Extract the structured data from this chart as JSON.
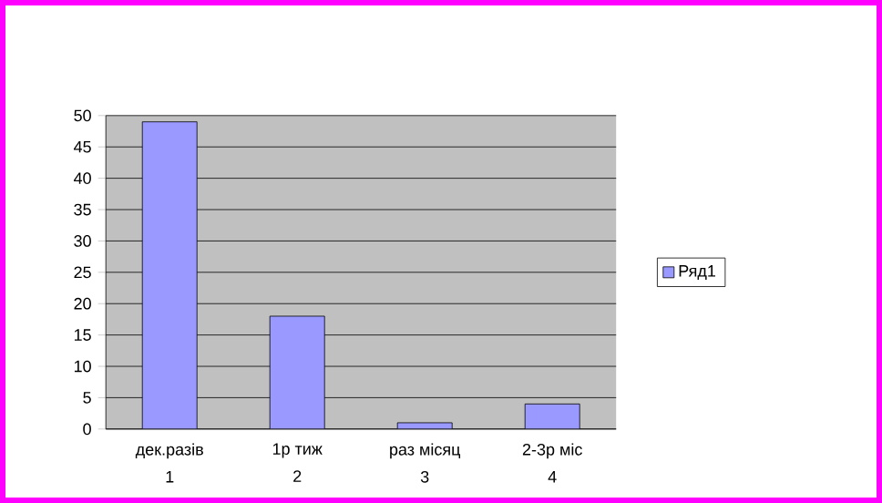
{
  "chart_data": {
    "type": "bar",
    "categories": [
      "дек.разів",
      "1р  тиж",
      "раз місяц",
      "2-3р міс"
    ],
    "annotations": [
      "1",
      "2",
      "3",
      "4"
    ],
    "series": [
      {
        "name": "Ряд1",
        "color": "#9999ff",
        "values": [
          49,
          18,
          1,
          4
        ]
      }
    ],
    "ylim": [
      0,
      50
    ],
    "yticks": [
      0,
      5,
      10,
      15,
      20,
      25,
      30,
      35,
      40,
      45,
      50
    ],
    "grid": "y",
    "legend": "right"
  }
}
